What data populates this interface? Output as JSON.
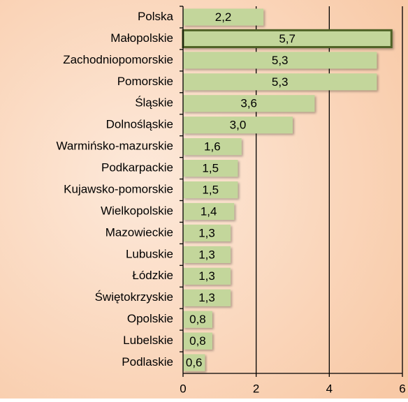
{
  "chart_data": {
    "type": "hbar",
    "categories": [
      "Polska",
      "Małopolskie",
      "Zachodniopomorskie",
      "Pomorskie",
      "Śląskie",
      "Dolnośląskie",
      "Warmińsko-mazurskie",
      "Podkarpackie",
      "Kujawsko-pomorskie",
      "Wielkopolskie",
      "Mazowieckie",
      "Lubuskie",
      "Łódzkie",
      "Świętokrzyskie",
      "Opolskie",
      "Lubelskie",
      "Podlaskie"
    ],
    "values": [
      2.2,
      5.7,
      5.3,
      5.3,
      3.6,
      3.0,
      1.6,
      1.5,
      1.5,
      1.4,
      1.3,
      1.3,
      1.3,
      1.3,
      0.8,
      0.8,
      0.6
    ],
    "value_labels": [
      "2,2",
      "5,7",
      "5,3",
      "5,3",
      "3,6",
      "3,0",
      "1,6",
      "1,5",
      "1,5",
      "1,4",
      "1,3",
      "1,3",
      "1,3",
      "1,3",
      "0,8",
      "0,8",
      "0,6"
    ],
    "color": "#c3d69b",
    "highlight": "Małopolskie",
    "highlight_edge": "#4f6228",
    "xlim": [
      0,
      6
    ],
    "xticks": [
      0,
      2,
      4,
      6
    ],
    "grid": true
  }
}
